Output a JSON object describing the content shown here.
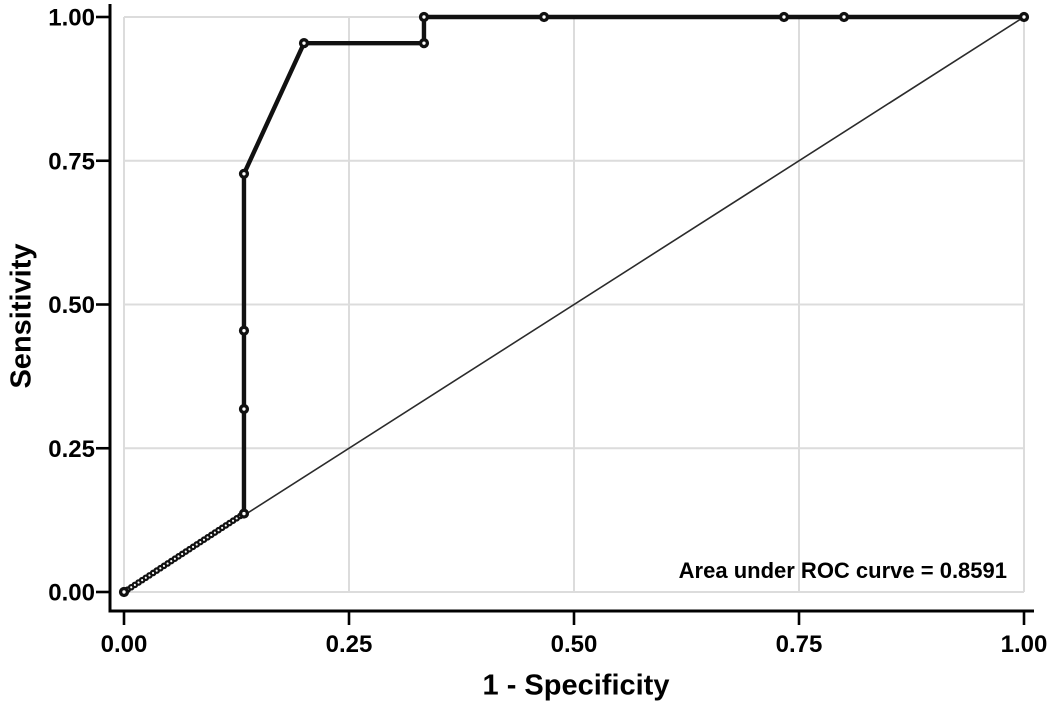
{
  "chart_data": {
    "type": "line",
    "title": "",
    "xlabel": "1 - Specificity",
    "ylabel": "Sensitivity",
    "xlim": [
      0,
      1
    ],
    "ylim": [
      0,
      1
    ],
    "grid": true,
    "legend": "none",
    "tick_values": [
      0,
      0.25,
      0.5,
      0.75,
      1
    ],
    "xtick_labels": [
      "0.00",
      "0.25",
      "0.50",
      "0.75",
      "1.00"
    ],
    "ytick_labels": [
      "0.00",
      "0.25",
      "0.50",
      "0.75",
      "1.00"
    ],
    "annotation": "Area under ROC curve = 0.8591",
    "auc_value": "0.8591",
    "series": [
      {
        "name": "roc-curve",
        "marker": "open-circle",
        "points": [
          [
            0,
            0
          ],
          [
            0.1333,
            0.1364
          ],
          [
            0.1333,
            0.3182
          ],
          [
            0.1333,
            0.4545
          ],
          [
            0.1333,
            0.7273
          ],
          [
            0.2,
            0.9545
          ],
          [
            0.3333,
            0.9545
          ],
          [
            0.3333,
            1.0
          ],
          [
            0.4667,
            1.0
          ],
          [
            0.7333,
            1.0
          ],
          [
            0.8,
            1.0
          ],
          [
            1.0,
            1.0
          ]
        ]
      },
      {
        "name": "reference-diagonal",
        "marker": "none",
        "points": [
          [
            0,
            0
          ],
          [
            1,
            1
          ]
        ]
      }
    ],
    "beaded_segment": {
      "from": [
        0,
        0
      ],
      "to": [
        0.1333,
        0.1364
      ],
      "beads": 33
    },
    "colors": {
      "curve": "#111111",
      "reference": "#2b2b2b",
      "grid": "#dcdcdc",
      "axis": "#000000",
      "text": "#000000",
      "background": "#ffffff",
      "marker_fill": "#ffffff"
    }
  }
}
